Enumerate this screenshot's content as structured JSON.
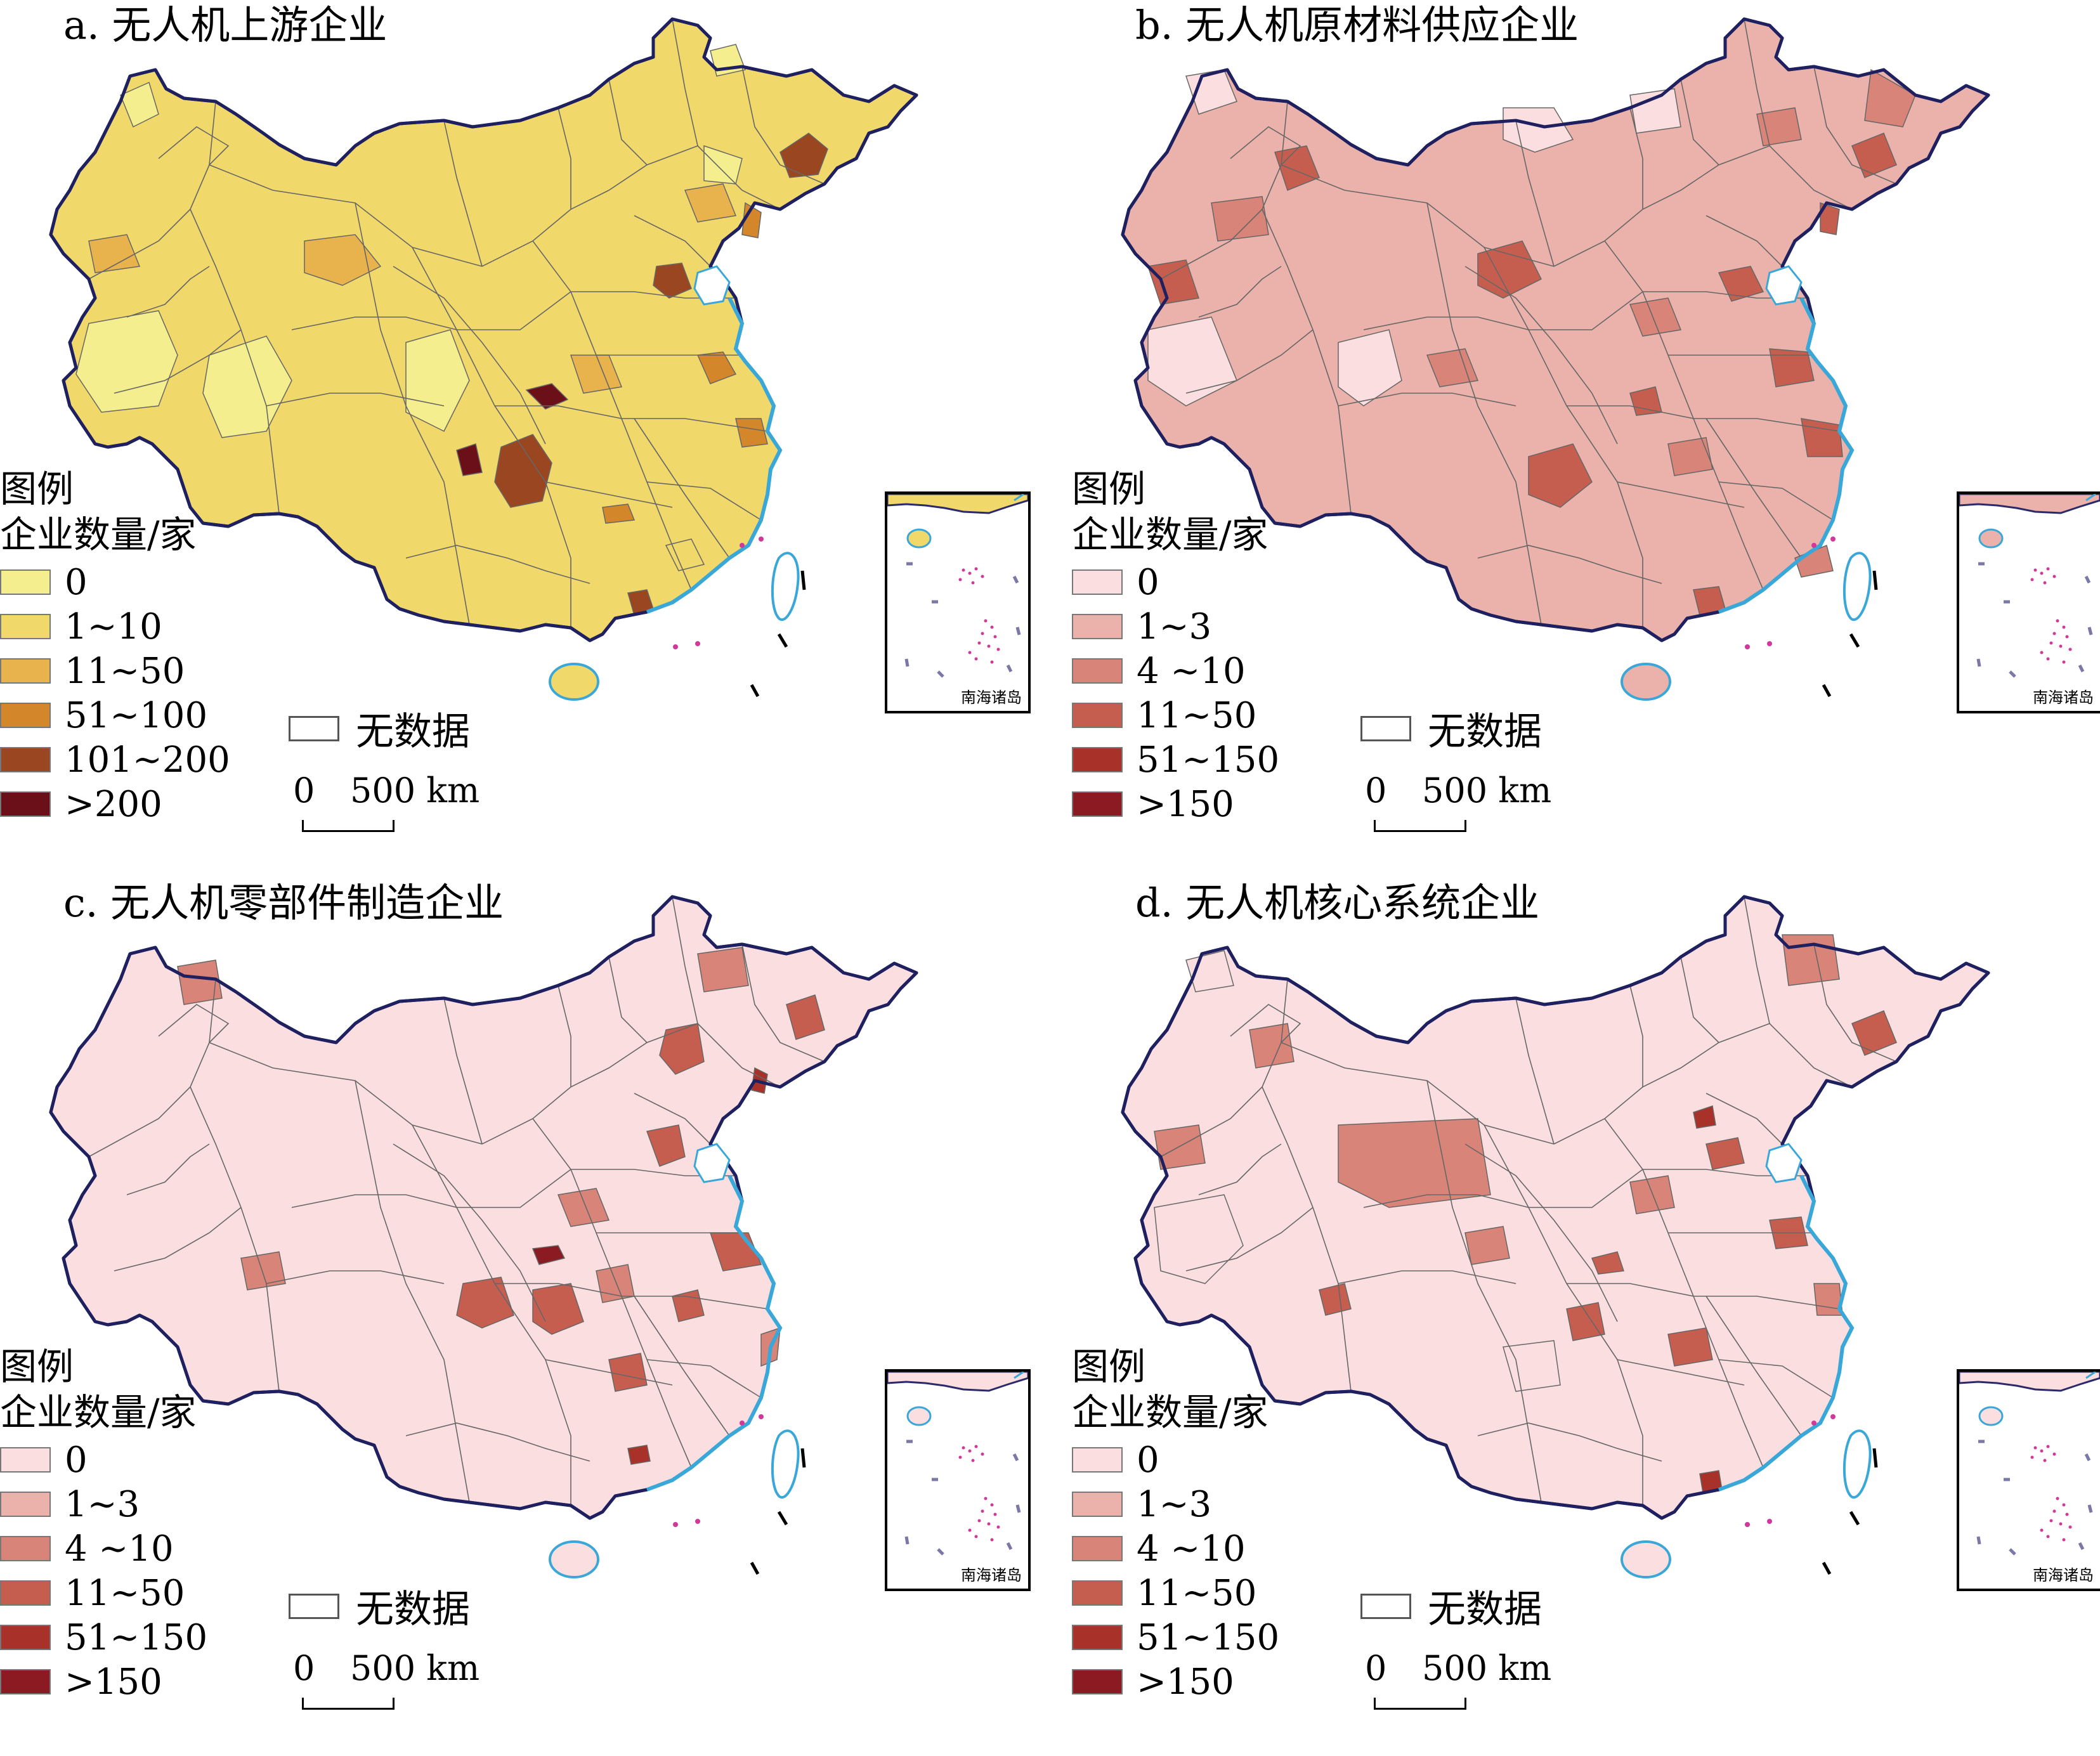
{
  "panels": [
    {
      "id": "a",
      "title": "a. 无人机上游企业",
      "legend_title": "图例",
      "legend_subtitle": "企业数量/家",
      "classes": [
        {
          "label": "0",
          "color": "#f5ee8e"
        },
        {
          "label": "1~10",
          "color": "#f1d86a"
        },
        {
          "label": "11~50",
          "color": "#e8b24c"
        },
        {
          "label": "51~100",
          "color": "#d4862b"
        },
        {
          "label": "101~200",
          "color": "#9a4620"
        },
        {
          "label": ">200",
          "color": "#6b1018"
        }
      ],
      "nodata_label": "无数据",
      "scale_zero": "0",
      "scale_label": "500 km",
      "inset_label": "南海诸岛"
    },
    {
      "id": "b",
      "title": "b. 无人机原材料供应企业",
      "legend_title": "图例",
      "legend_subtitle": "企业数量/家",
      "classes": [
        {
          "label": "0",
          "color": "#fbdfe0"
        },
        {
          "label": "1~3",
          "color": "#eab2aa"
        },
        {
          "label": "4 ~10",
          "color": "#d98478"
        },
        {
          "label": "11~50",
          "color": "#c65e50"
        },
        {
          "label": "51~150",
          "color": "#a8322a"
        },
        {
          "label": ">150",
          "color": "#8c1a22"
        }
      ],
      "nodata_label": "无数据",
      "scale_zero": "0",
      "scale_label": "500 km",
      "inset_label": "南海诸岛"
    },
    {
      "id": "c",
      "title": "c. 无人机零部件制造企业",
      "legend_title": "图例",
      "legend_subtitle": "企业数量/家",
      "classes": [
        {
          "label": "0",
          "color": "#fbdfe0"
        },
        {
          "label": "1~3",
          "color": "#eab2aa"
        },
        {
          "label": "4 ~10",
          "color": "#d98478"
        },
        {
          "label": "11~50",
          "color": "#c65e50"
        },
        {
          "label": "51~150",
          "color": "#a8322a"
        },
        {
          "label": ">150",
          "color": "#8c1a22"
        }
      ],
      "nodata_label": "无数据",
      "scale_zero": "0",
      "scale_label": "500 km",
      "inset_label": "南海诸岛"
    },
    {
      "id": "d",
      "title": "d. 无人机核心系统企业",
      "legend_title": "图例",
      "legend_subtitle": "企业数量/家",
      "classes": [
        {
          "label": "0",
          "color": "#fbdfe0"
        },
        {
          "label": "1~3",
          "color": "#eab2aa"
        },
        {
          "label": "4 ~10",
          "color": "#d98478"
        },
        {
          "label": "11~50",
          "color": "#c65e50"
        },
        {
          "label": "51~150",
          "color": "#a8322a"
        },
        {
          "label": ">150",
          "color": "#8c1a22"
        }
      ],
      "nodata_label": "无数据",
      "scale_zero": "0",
      "scale_label": "500 km",
      "inset_label": "南海诸岛"
    }
  ],
  "coast_color": "#3aa7d9",
  "island_color": "#d0389a"
}
